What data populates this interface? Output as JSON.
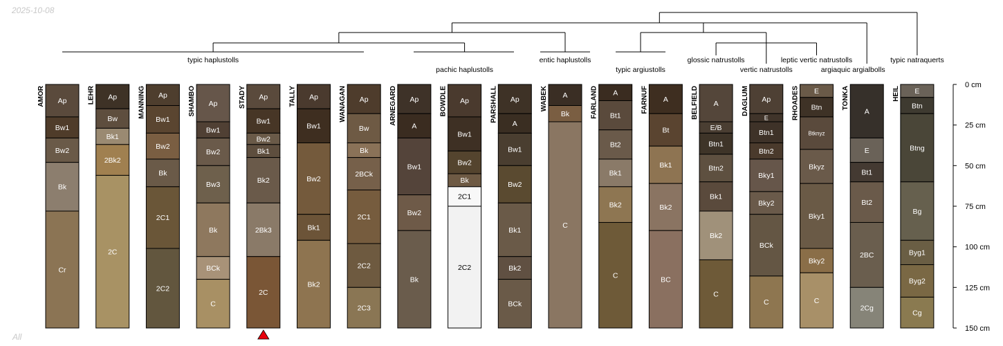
{
  "date_label": "2025-10-08",
  "footer_label": "All",
  "chart_data": {
    "type": "soil_profile_sketch",
    "depth_axis": {
      "unit": "cm",
      "range": [
        0,
        150
      ],
      "ticks": [
        0,
        25,
        50,
        75,
        100,
        125,
        150
      ],
      "tick_labels": [
        "0 cm",
        "25 cm",
        "50 cm",
        "75 cm",
        "100 cm",
        "125 cm",
        "150 cm"
      ]
    },
    "highlighted_profile": "STADY",
    "profiles": [
      {
        "name": "AMOR",
        "horizons": [
          {
            "name": "Ap",
            "top": 0,
            "bottom": 20,
            "color": "#5a4a3c"
          },
          {
            "name": "Bw1",
            "top": 20,
            "bottom": 33,
            "color": "#4f3c2a"
          },
          {
            "name": "Bw2",
            "top": 33,
            "bottom": 48,
            "color": "#6a5a48"
          },
          {
            "name": "Bk",
            "top": 48,
            "bottom": 78,
            "color": "#8c7e6e"
          },
          {
            "name": "Cr",
            "top": 78,
            "bottom": 150,
            "color": "#8b7454"
          }
        ]
      },
      {
        "name": "LEHR",
        "horizons": [
          {
            "name": "Ap",
            "top": 0,
            "bottom": 15,
            "color": "#3e3226"
          },
          {
            "name": "Bw",
            "top": 15,
            "bottom": 27,
            "color": "#5e4e3e"
          },
          {
            "name": "Bk1",
            "top": 27,
            "bottom": 37,
            "color": "#9a8a72"
          },
          {
            "name": "2Bk2",
            "top": 37,
            "bottom": 56,
            "color": "#a08050"
          },
          {
            "name": "2C",
            "top": 56,
            "bottom": 150,
            "color": "#a89264"
          }
        ]
      },
      {
        "name": "MANNING",
        "horizons": [
          {
            "name": "Ap",
            "top": 0,
            "bottom": 13,
            "color": "#4e3e2e"
          },
          {
            "name": "Bw1",
            "top": 13,
            "bottom": 30,
            "color": "#5a4530"
          },
          {
            "name": "Bw2",
            "top": 30,
            "bottom": 46,
            "color": "#7a5e42"
          },
          {
            "name": "Bk",
            "top": 46,
            "bottom": 63,
            "color": "#6a5a48"
          },
          {
            "name": "2C1",
            "top": 63,
            "bottom": 101,
            "color": "#6a5638"
          },
          {
            "name": "2C2",
            "top": 101,
            "bottom": 150,
            "color": "#62563e"
          }
        ]
      },
      {
        "name": "SHAMBO",
        "horizons": [
          {
            "name": "Ap",
            "top": 0,
            "bottom": 23,
            "color": "#66564a"
          },
          {
            "name": "Bw1",
            "top": 23,
            "bottom": 33,
            "color": "#504034"
          },
          {
            "name": "Bw2",
            "top": 33,
            "bottom": 50,
            "color": "#6a5a4a"
          },
          {
            "name": "Bw3",
            "top": 50,
            "bottom": 73,
            "color": "#6e604c"
          },
          {
            "name": "Bk",
            "top": 73,
            "bottom": 106,
            "color": "#8e785e"
          },
          {
            "name": "BCk",
            "top": 106,
            "bottom": 120,
            "color": "#a89278"
          },
          {
            "name": "C",
            "top": 120,
            "bottom": 150,
            "color": "#a89064"
          }
        ]
      },
      {
        "name": "STADY",
        "horizons": [
          {
            "name": "Ap",
            "top": 0,
            "bottom": 15,
            "color": "#5a4a3c"
          },
          {
            "name": "Bw1",
            "top": 15,
            "bottom": 30,
            "color": "#473626"
          },
          {
            "name": "Bw2",
            "top": 30,
            "bottom": 37,
            "color": "#6a5a48"
          },
          {
            "name": "Bk1",
            "top": 37,
            "bottom": 45,
            "color": "#5e4e3e"
          },
          {
            "name": "Bk2",
            "top": 45,
            "bottom": 73,
            "color": "#6a5a4a"
          },
          {
            "name": "2Bk3",
            "top": 73,
            "bottom": 106,
            "color": "#8a7a68"
          },
          {
            "name": "2C",
            "top": 106,
            "bottom": 150,
            "color": "#7a5636"
          }
        ]
      },
      {
        "name": "TALLY",
        "horizons": [
          {
            "name": "Ap",
            "top": 0,
            "bottom": 15,
            "color": "#4a3a2e"
          },
          {
            "name": "Bw1",
            "top": 15,
            "bottom": 36,
            "color": "#3e2e20"
          },
          {
            "name": "Bw2",
            "top": 36,
            "bottom": 80,
            "color": "#745a3c"
          },
          {
            "name": "Bk1",
            "top": 80,
            "bottom": 96,
            "color": "#6c5438"
          },
          {
            "name": "Bk2",
            "top": 96,
            "bottom": 150,
            "color": "#8e7450"
          }
        ]
      },
      {
        "name": "WANAGAN",
        "horizons": [
          {
            "name": "Ap",
            "top": 0,
            "bottom": 18,
            "color": "#4e3c2c"
          },
          {
            "name": "Bw",
            "top": 18,
            "bottom": 36,
            "color": "#6e5a44"
          },
          {
            "name": "Bk",
            "top": 36,
            "bottom": 45,
            "color": "#8a7258"
          },
          {
            "name": "2BCk",
            "top": 45,
            "bottom": 65,
            "color": "#76604a"
          },
          {
            "name": "2C1",
            "top": 65,
            "bottom": 98,
            "color": "#765c3e"
          },
          {
            "name": "2C2",
            "top": 98,
            "bottom": 125,
            "color": "#6e5a40"
          },
          {
            "name": "2C3",
            "top": 125,
            "bottom": 150,
            "color": "#8a7654"
          }
        ]
      },
      {
        "name": "ARNEGARD",
        "horizons": [
          {
            "name": "Ap",
            "top": 0,
            "bottom": 18,
            "color": "#3e3228"
          },
          {
            "name": "A",
            "top": 18,
            "bottom": 33,
            "color": "#3a2c20"
          },
          {
            "name": "Bw1",
            "top": 33,
            "bottom": 68,
            "color": "#54443a"
          },
          {
            "name": "Bw2",
            "top": 68,
            "bottom": 90,
            "color": "#6e5a48"
          },
          {
            "name": "Bk",
            "top": 90,
            "bottom": 150,
            "color": "#6a5c4c"
          }
        ]
      },
      {
        "name": "BOWDLE",
        "horizons": [
          {
            "name": "Ap",
            "top": 0,
            "bottom": 20,
            "color": "#4a3a2e"
          },
          {
            "name": "Bw1",
            "top": 20,
            "bottom": 41,
            "color": "#3e3024"
          },
          {
            "name": "Bw2",
            "top": 41,
            "bottom": 55,
            "color": "#54442e"
          },
          {
            "name": "Bk",
            "top": 55,
            "bottom": 63,
            "color": "#6e5a44"
          },
          {
            "name": "2C1",
            "top": 63,
            "bottom": 75,
            "color": "#f8f8f8"
          },
          {
            "name": "2C2",
            "top": 75,
            "bottom": 150,
            "color": "#f2f2f2"
          }
        ]
      },
      {
        "name": "PARSHALL",
        "horizons": [
          {
            "name": "Ap",
            "top": 0,
            "bottom": 18,
            "color": "#3e3226"
          },
          {
            "name": "A",
            "top": 18,
            "bottom": 30,
            "color": "#3a2e22"
          },
          {
            "name": "Bw1",
            "top": 30,
            "bottom": 50,
            "color": "#4a3e30"
          },
          {
            "name": "Bw2",
            "top": 50,
            "bottom": 73,
            "color": "#5a4a30"
          },
          {
            "name": "Bk1",
            "top": 73,
            "bottom": 106,
            "color": "#6a5a48"
          },
          {
            "name": "Bk2",
            "top": 106,
            "bottom": 120,
            "color": "#605042"
          },
          {
            "name": "BCk",
            "top": 120,
            "bottom": 150,
            "color": "#6a5a48"
          }
        ]
      },
      {
        "name": "WABEK",
        "horizons": [
          {
            "name": "A",
            "top": 0,
            "bottom": 13,
            "color": "#3a2e24"
          },
          {
            "name": "Bk",
            "top": 13,
            "bottom": 23,
            "color": "#7a5e42"
          },
          {
            "name": "C",
            "top": 23,
            "bottom": 150,
            "color": "#8a7662"
          }
        ]
      },
      {
        "name": "FARLAND",
        "horizons": [
          {
            "name": "A",
            "top": 0,
            "bottom": 10,
            "color": "#3a2c20"
          },
          {
            "name": "Bt1",
            "top": 10,
            "bottom": 28,
            "color": "#5a4a3c"
          },
          {
            "name": "Bt2",
            "top": 28,
            "bottom": 46,
            "color": "#6a5a4a"
          },
          {
            "name": "Bk1",
            "top": 46,
            "bottom": 63,
            "color": "#8a7a68"
          },
          {
            "name": "Bk2",
            "top": 63,
            "bottom": 85,
            "color": "#8e7652"
          },
          {
            "name": "C",
            "top": 85,
            "bottom": 150,
            "color": "#6e5a38"
          }
        ]
      },
      {
        "name": "FARNUF",
        "horizons": [
          {
            "name": "A",
            "top": 0,
            "bottom": 18,
            "color": "#3e2e20"
          },
          {
            "name": "Bt",
            "top": 18,
            "bottom": 38,
            "color": "#5a4430"
          },
          {
            "name": "Bk1",
            "top": 38,
            "bottom": 61,
            "color": "#8e7452"
          },
          {
            "name": "Bk2",
            "top": 61,
            "bottom": 90,
            "color": "#8a7462"
          },
          {
            "name": "BC",
            "top": 90,
            "bottom": 150,
            "color": "#8a7060"
          }
        ]
      },
      {
        "name": "BELFIELD",
        "horizons": [
          {
            "name": "A",
            "top": 0,
            "bottom": 23,
            "color": "#54463a"
          },
          {
            "name": "E/B",
            "top": 23,
            "bottom": 30,
            "color": "#4a3e32"
          },
          {
            "name": "Btn1",
            "top": 30,
            "bottom": 43,
            "color": "#3e3428"
          },
          {
            "name": "Btn2",
            "top": 43,
            "bottom": 60,
            "color": "#5e5040"
          },
          {
            "name": "Bk1",
            "top": 60,
            "bottom": 78,
            "color": "#5a4a3c"
          },
          {
            "name": "Bk2",
            "top": 78,
            "bottom": 108,
            "color": "#a0917a"
          },
          {
            "name": "C",
            "top": 108,
            "bottom": 150,
            "color": "#6e5a38"
          }
        ]
      },
      {
        "name": "DAGLUM",
        "horizons": [
          {
            "name": "Ap",
            "top": 0,
            "bottom": 18,
            "color": "#4e4034"
          },
          {
            "name": "E",
            "top": 18,
            "bottom": 23,
            "color": "#40342a"
          },
          {
            "name": "Btn1",
            "top": 23,
            "bottom": 36,
            "color": "#3e3228"
          },
          {
            "name": "Btn2",
            "top": 36,
            "bottom": 46,
            "color": "#4a3a2c"
          },
          {
            "name": "Bky1",
            "top": 46,
            "bottom": 66,
            "color": "#66564a"
          },
          {
            "name": "Bky2",
            "top": 66,
            "bottom": 80,
            "color": "#6a5a4a"
          },
          {
            "name": "BCk",
            "top": 80,
            "bottom": 118,
            "color": "#645644"
          },
          {
            "name": "C",
            "top": 118,
            "bottom": 150,
            "color": "#8e7650"
          }
        ]
      },
      {
        "name": "RHOADES",
        "horizons": [
          {
            "name": "E",
            "top": 0,
            "bottom": 8,
            "color": "#6a5a48"
          },
          {
            "name": "Btn",
            "top": 8,
            "bottom": 20,
            "color": "#3e3226"
          },
          {
            "name": "Btknyz",
            "top": 20,
            "bottom": 40,
            "color": "#5a4a3c"
          },
          {
            "name": "Bkyz",
            "top": 40,
            "bottom": 61,
            "color": "#6a5a4a"
          },
          {
            "name": "Bky1",
            "top": 61,
            "bottom": 101,
            "color": "#6a5a46"
          },
          {
            "name": "Bky2",
            "top": 101,
            "bottom": 116,
            "color": "#8a6e48"
          },
          {
            "name": "C",
            "top": 116,
            "bottom": 150,
            "color": "#a89068"
          }
        ]
      },
      {
        "name": "TONKA",
        "horizons": [
          {
            "name": "A",
            "top": 0,
            "bottom": 33,
            "color": "#36302a"
          },
          {
            "name": "E",
            "top": 33,
            "bottom": 48,
            "color": "#6a6258"
          },
          {
            "name": "Bt1",
            "top": 48,
            "bottom": 60,
            "color": "#443a32"
          },
          {
            "name": "Bt2",
            "top": 60,
            "bottom": 85,
            "color": "#6a5a4a"
          },
          {
            "name": "2BC",
            "top": 85,
            "bottom": 125,
            "color": "#6a5e4e"
          },
          {
            "name": "2Cg",
            "top": 125,
            "bottom": 150,
            "color": "#868478"
          }
        ]
      },
      {
        "name": "HEIL",
        "horizons": [
          {
            "name": "E",
            "top": 0,
            "bottom": 8,
            "color": "#6a6258"
          },
          {
            "name": "Btn",
            "top": 8,
            "bottom": 18,
            "color": "#3e3a30"
          },
          {
            "name": "Btng",
            "top": 18,
            "bottom": 60,
            "color": "#4a4638"
          },
          {
            "name": "Bg",
            "top": 60,
            "bottom": 96,
            "color": "#66604e"
          },
          {
            "name": "Byg1",
            "top": 96,
            "bottom": 111,
            "color": "#6a5e44"
          },
          {
            "name": "Byg2",
            "top": 111,
            "bottom": 131,
            "color": "#7a6844"
          },
          {
            "name": "Cg",
            "top": 131,
            "bottom": 150,
            "color": "#8a7a50"
          }
        ]
      }
    ],
    "groups": [
      {
        "label": "typic haplustolls",
        "members": [
          "AMOR",
          "LEHR",
          "MANNING",
          "SHAMBO",
          "STADY",
          "TALLY",
          "WANAGAN"
        ]
      },
      {
        "label": "pachic haplustolls",
        "members": [
          "ARNEGARD",
          "BOWDLE",
          "PARSHALL"
        ]
      },
      {
        "label": "entic haplustolls",
        "members": [
          "WABEK"
        ]
      },
      {
        "label": "typic argiustolls",
        "members": [
          "FARLAND",
          "FARNUF"
        ]
      },
      {
        "label": "glossic natrustolls",
        "members": [
          "BELFIELD"
        ]
      },
      {
        "label": "vertic natrustolls",
        "members": [
          "DAGLUM"
        ]
      },
      {
        "label": "leptic vertic natrustolls",
        "members": [
          "RHOADES"
        ]
      },
      {
        "label": "argiaquic argialbolls",
        "members": [
          "TONKA"
        ]
      },
      {
        "label": "typic natraquerts",
        "members": [
          "HEIL"
        ]
      }
    ]
  }
}
